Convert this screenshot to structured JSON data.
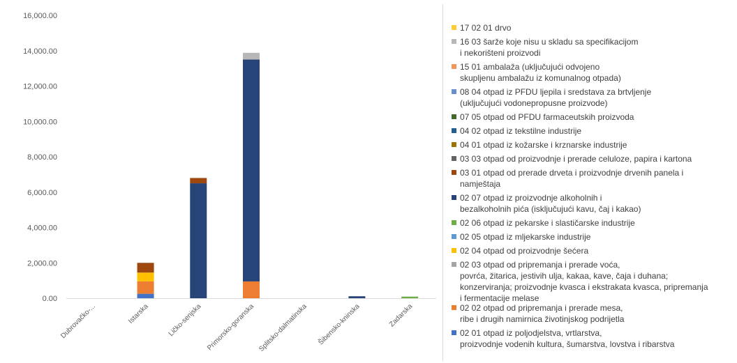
{
  "chart_data": {
    "type": "bar",
    "stacked": true,
    "categories": [
      "Dubrovačko-...",
      "Istarska",
      "Ličko-senjska",
      "Primorsko-goranska",
      "Splitsko-dalmatinska",
      "Šibensko-kninska",
      "Zadarska"
    ],
    "y_ticks": [
      "0.00",
      "2,000.00",
      "4,000.00",
      "6,000.00",
      "8,000.00",
      "10,000.00",
      "12,000.00",
      "14,000.00",
      "16,000.00"
    ],
    "ylim": [
      0,
      16000
    ],
    "grid": false,
    "legend_position": "right",
    "series": [
      {
        "name": "02 01 otpad iz poljodjelstva, vrtlarstva,\nproizvodnje vodenih kultura, šumarstva, lovstva i ribarstva",
        "color": "#4472c4",
        "values": [
          0,
          250,
          0,
          0,
          0,
          0,
          0
        ]
      },
      {
        "name": "02 02 otpad od pripremanja i prerade mesa,\nribe i drugih namirnica životinjskog podrijetla",
        "color": "#ed7d31",
        "values": [
          0,
          700,
          0,
          950,
          0,
          0,
          0
        ]
      },
      {
        "name": "02 03 otpad od pripremanja i prerade voća,\npovrća, žitarica, jestivih ulja, kakaa, kave, čaja i duhana;\nkonzerviranja; proizvodnje kvasca i ekstrakata kvasca, pripremanja\ni fermentacije melase",
        "color": "#a5a5a5",
        "values": [
          0,
          0,
          0,
          0,
          0,
          0,
          0
        ]
      },
      {
        "name": "02 04 otpad od proizvodnje šećera",
        "color": "#ffc000",
        "values": [
          0,
          500,
          0,
          0,
          0,
          0,
          0
        ]
      },
      {
        "name": "02 05 otpad iz mljekarske industrije",
        "color": "#5b9bd5",
        "values": [
          0,
          0,
          0,
          0,
          0,
          0,
          0
        ]
      },
      {
        "name": "02 06 otpad iz pekarske i slastičarske industrije",
        "color": "#70ad47",
        "values": [
          0,
          0,
          0,
          0,
          0,
          0,
          90
        ]
      },
      {
        "name": "02 07 otpad iz proizvodnje alkoholnih i\nbezalkoholnih pića (isključujući kavu, čaj i kakao)",
        "color": "#264478",
        "values": [
          0,
          0,
          6500,
          12550,
          0,
          110,
          0
        ]
      },
      {
        "name": "03 01 otpad od prerade drveta i proizvodnje drvenih panela i\nnamještaja",
        "color": "#9e480e",
        "values": [
          0,
          550,
          300,
          0,
          0,
          0,
          0
        ]
      },
      {
        "name": "03 03 otpad od proizvodnje i prerade celuloze, papira i kartona",
        "color": "#636363",
        "values": [
          0,
          0,
          0,
          0,
          0,
          0,
          0
        ]
      },
      {
        "name": "04 01 otpad iz kožarske i krznarske industrije",
        "color": "#997300",
        "values": [
          0,
          0,
          0,
          0,
          0,
          0,
          0
        ]
      },
      {
        "name": "04 02 otpad iz tekstilne industrije",
        "color": "#255e91",
        "values": [
          0,
          0,
          0,
          0,
          0,
          0,
          0
        ]
      },
      {
        "name": "07 05 otpad od PFDU farmaceutskih proizvoda",
        "color": "#43682b",
        "values": [
          0,
          0,
          0,
          0,
          0,
          0,
          0
        ]
      },
      {
        "name": "08 04 otpad iz PFDU ljepila i sredstava za brtvljenje\n(uključujući vodonepropusne proizvode)",
        "color": "#698ed0",
        "values": [
          0,
          0,
          0,
          0,
          0,
          0,
          0
        ]
      },
      {
        "name": "15 01 ambalaža (uključujući odvojeno\nskupljenu ambalažu iz komunalnog otpada)",
        "color": "#f1975a",
        "values": [
          0,
          0,
          0,
          0,
          0,
          0,
          0
        ]
      },
      {
        "name": "16 03 šarže koje nisu u skladu sa specifikacijom\ni nekorišteni proizvodi",
        "color": "#b7b7b7",
        "values": [
          0,
          0,
          0,
          380,
          0,
          0,
          0
        ]
      },
      {
        "name": "17 02 01 drvo",
        "color": "#ffcd33",
        "values": [
          0,
          0,
          0,
          0,
          0,
          0,
          0
        ]
      }
    ]
  }
}
